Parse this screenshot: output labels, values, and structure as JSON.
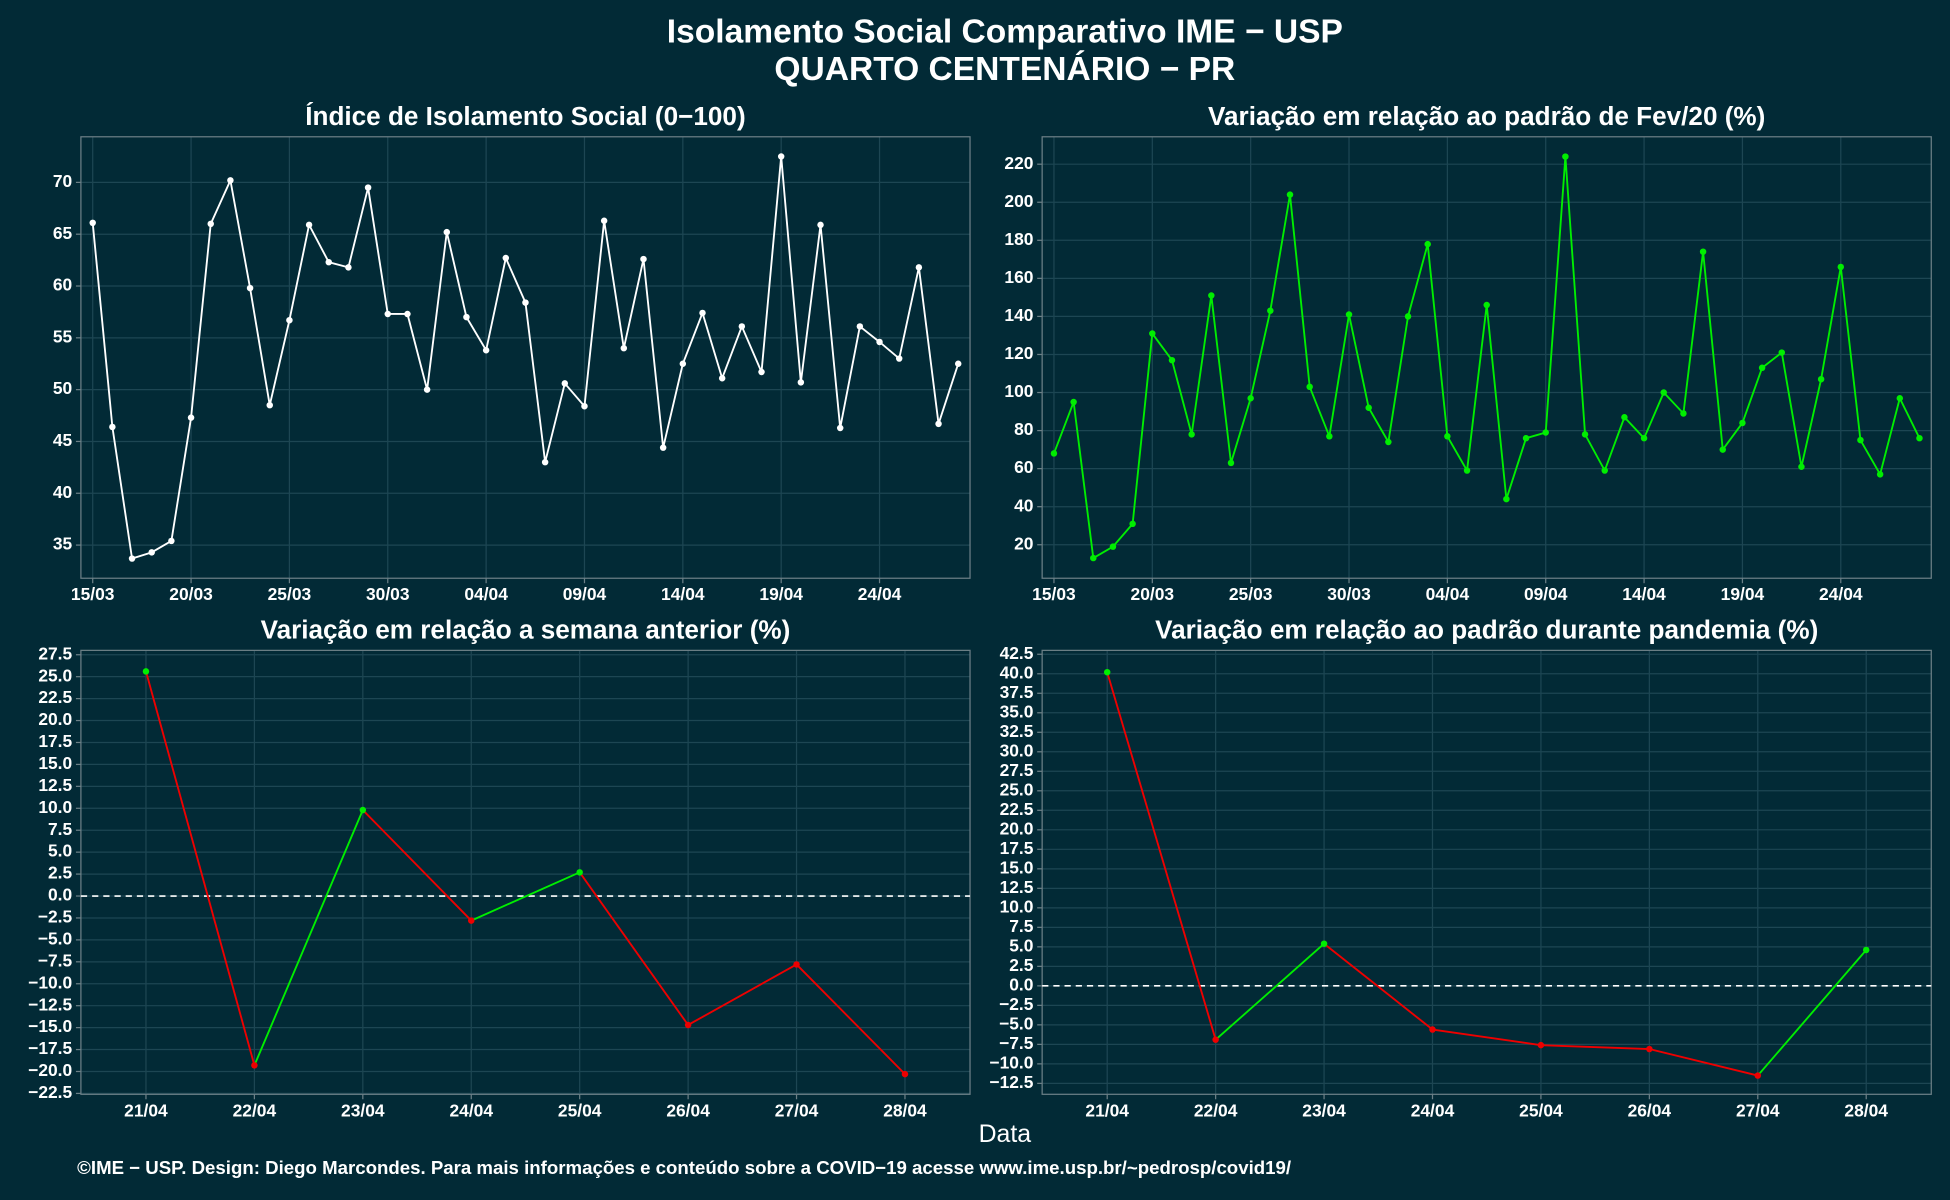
{
  "title": "Isolamento Social Comparativo IME − USP",
  "subtitle": "QUARTO CENTENÁRIO − PR",
  "xlabel": "Data",
  "footer": "©IME − USP. Design: Diego Marcondes. Para mais informações e conteúdo sobre a COVID−19 acesse www.ime.usp.br/~pedrosp/covid19/",
  "chart_data": [
    {
      "type": "line",
      "title": "Índice de Isolamento Social (0−100)",
      "categories": [
        "15/03",
        null,
        null,
        null,
        null,
        "20/03",
        null,
        null,
        null,
        null,
        "25/03",
        null,
        null,
        null,
        null,
        "30/03",
        null,
        null,
        null,
        null,
        "04/04",
        null,
        null,
        null,
        null,
        "09/04",
        null,
        null,
        null,
        null,
        "14/04",
        null,
        null,
        null,
        null,
        "19/04",
        null,
        null,
        null,
        null,
        "24/04",
        null,
        null,
        null,
        null
      ],
      "values": [
        66.1,
        46.4,
        33.7,
        34.3,
        35.4,
        47.3,
        66.0,
        70.2,
        59.8,
        48.5,
        56.7,
        65.9,
        62.3,
        61.8,
        69.5,
        57.3,
        57.3,
        50.0,
        65.2,
        57.0,
        53.8,
        62.7,
        58.4,
        43.0,
        50.6,
        48.4,
        66.3,
        54.0,
        62.6,
        44.4,
        52.5,
        57.4,
        51.1,
        56.1,
        51.7,
        72.5,
        50.7,
        65.9,
        46.3,
        56.1,
        54.6,
        53.0,
        61.8,
        46.7,
        52.5
      ],
      "color": "#ffffff",
      "ylim": [
        31.8,
        74.4
      ],
      "yticks": [
        35,
        40,
        45,
        50,
        55,
        60,
        65,
        70
      ],
      "grid": true
    },
    {
      "type": "line",
      "title": "Variação em relação ao padrão de Fev/20 (%)",
      "categories": [
        "15/03",
        null,
        null,
        null,
        null,
        "20/03",
        null,
        null,
        null,
        null,
        "25/03",
        null,
        null,
        null,
        null,
        "30/03",
        null,
        null,
        null,
        null,
        "04/04",
        null,
        null,
        null,
        null,
        "09/04",
        null,
        null,
        null,
        null,
        "14/04",
        null,
        null,
        null,
        null,
        "19/04",
        null,
        null,
        null,
        null,
        "24/04",
        null,
        null,
        null,
        null
      ],
      "values": [
        68,
        95,
        13,
        19,
        31,
        131,
        117,
        78,
        151,
        63,
        97,
        143,
        204,
        103,
        77,
        141,
        92,
        74,
        140,
        178,
        77,
        59,
        146,
        44,
        76,
        79,
        224,
        78,
        59,
        87,
        76,
        100,
        89,
        174,
        70,
        84,
        113,
        121,
        61,
        107,
        166,
        75,
        57,
        97,
        76
      ],
      "color": "#00ee00",
      "ylim": [
        2.4,
        234.4
      ],
      "yticks": [
        20,
        40,
        60,
        80,
        100,
        120,
        140,
        160,
        180,
        200,
        220
      ],
      "grid": true
    },
    {
      "type": "signline",
      "title": "Variação em relação a semana anterior (%)",
      "categories": [
        "21/04",
        "22/04",
        "23/04",
        "24/04",
        "25/04",
        "26/04",
        "27/04",
        "28/04"
      ],
      "values": [
        25.6,
        -19.3,
        9.8,
        -2.8,
        2.7,
        -14.7,
        -7.8,
        -20.3
      ],
      "color_positive": "#00ee00",
      "color_negative": "#ee0000",
      "hline": 0,
      "ylim": [
        -22.6,
        28.0
      ],
      "yticks": [
        {
          "value": 27.5,
          "label": "27.5"
        },
        {
          "value": 25,
          "label": "25.0"
        },
        {
          "value": 22.5,
          "label": "22.5"
        },
        {
          "value": 20,
          "label": "20.0"
        },
        {
          "value": 17.5,
          "label": "17.5"
        },
        {
          "value": 15,
          "label": "15.0"
        },
        {
          "value": 12.5,
          "label": "12.5"
        },
        {
          "value": 10,
          "label": "10.0"
        },
        {
          "value": 7.5,
          "label": "7.5"
        },
        {
          "value": 5,
          "label": "5.0"
        },
        {
          "value": 2.5,
          "label": "2.5"
        },
        {
          "value": 0,
          "label": "0.0"
        },
        {
          "value": -2.5,
          "label": "−2.5"
        },
        {
          "value": -5,
          "label": "−5.0"
        },
        {
          "value": -7.5,
          "label": "−7.5"
        },
        {
          "value": -10,
          "label": "−10.0"
        },
        {
          "value": -12.5,
          "label": "−12.5"
        },
        {
          "value": -15,
          "label": "−15.0"
        },
        {
          "value": -17.5,
          "label": "−17.5"
        },
        {
          "value": -20,
          "label": "−20.0"
        },
        {
          "value": -22.5,
          "label": "−22.5"
        }
      ],
      "grid": true
    },
    {
      "type": "signline",
      "title": "Variação em relação ao padrão durante pandemia (%)",
      "categories": [
        "21/04",
        "22/04",
        "23/04",
        "24/04",
        "25/04",
        "26/04",
        "27/04",
        "28/04"
      ],
      "values": [
        40.2,
        -6.9,
        5.4,
        -5.6,
        -7.6,
        -8.1,
        -11.5,
        4.6
      ],
      "color_positive": "#00ee00",
      "color_negative": "#ee0000",
      "hline": 0,
      "ylim": [
        -13.9,
        43.0
      ],
      "yticks": [
        {
          "value": 42.5,
          "label": "42.5"
        },
        {
          "value": 40,
          "label": "40.0"
        },
        {
          "value": 37.5,
          "label": "37.5"
        },
        {
          "value": 35,
          "label": "35.0"
        },
        {
          "value": 32.5,
          "label": "32.5"
        },
        {
          "value": 30,
          "label": "30.0"
        },
        {
          "value": 27.5,
          "label": "27.5"
        },
        {
          "value": 25,
          "label": "25.0"
        },
        {
          "value": 22.5,
          "label": "22.5"
        },
        {
          "value": 20,
          "label": "20.0"
        },
        {
          "value": 17.5,
          "label": "17.5"
        },
        {
          "value": 15,
          "label": "15.0"
        },
        {
          "value": 12.5,
          "label": "12.5"
        },
        {
          "value": 10,
          "label": "10.0"
        },
        {
          "value": 7.5,
          "label": "7.5"
        },
        {
          "value": 5,
          "label": "5.0"
        },
        {
          "value": 2.5,
          "label": "2.5"
        },
        {
          "value": 0,
          "label": "0.0"
        },
        {
          "value": -2.5,
          "label": "−2.5"
        },
        {
          "value": -5,
          "label": "−5.0"
        },
        {
          "value": -7.5,
          "label": "−7.5"
        },
        {
          "value": -10,
          "label": "−10.0"
        },
        {
          "value": -12.5,
          "label": "−12.5"
        }
      ],
      "grid": true
    }
  ]
}
